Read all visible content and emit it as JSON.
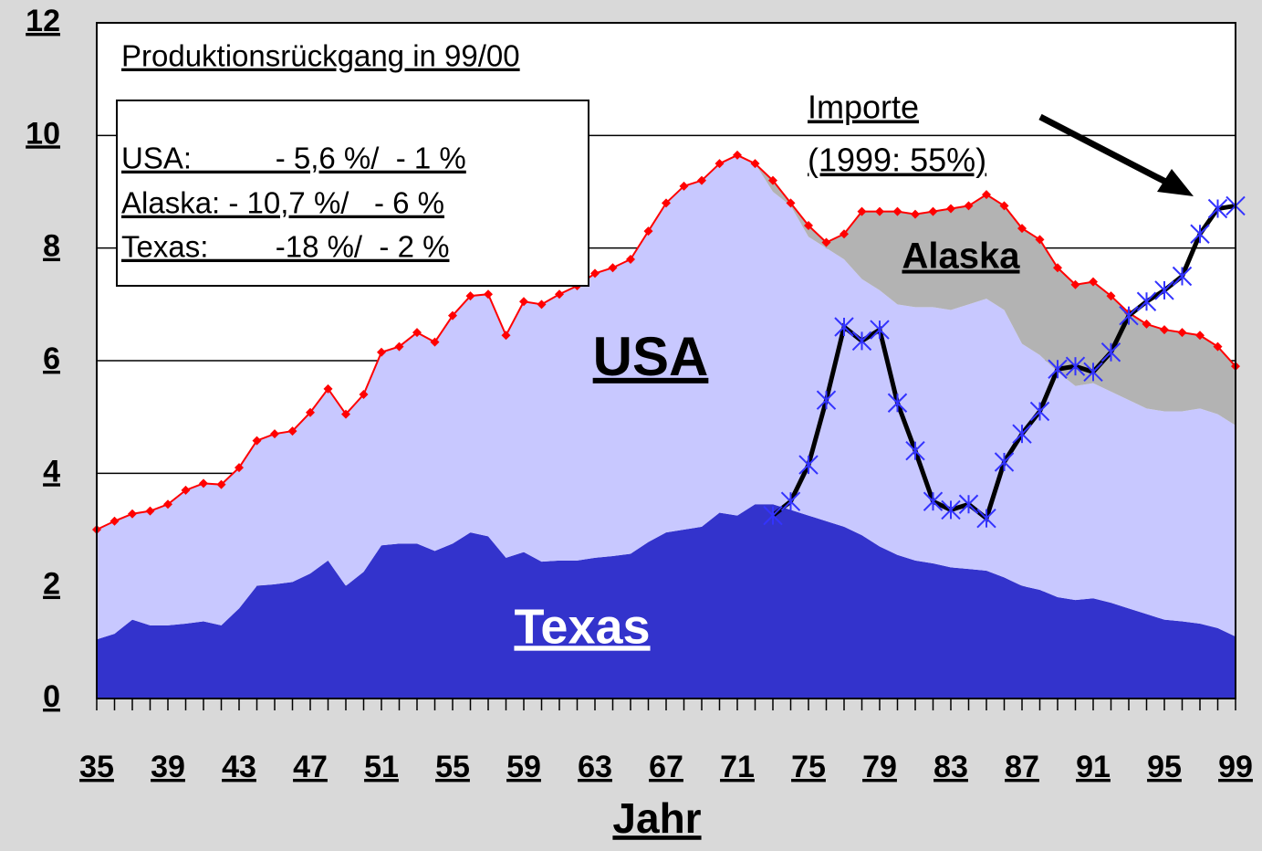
{
  "chart_data": {
    "type": "area",
    "xlabel": "Jahr",
    "annotations": {
      "box_title": "Produktionsrückgang in 99/00",
      "box_lines": [
        "USA:          - 5,6 %/  - 1 %",
        "Alaska: - 10,7 %/   - 6 %",
        "Texas:        -18 %/  - 2 %"
      ],
      "imports_note": "(1999: 55%)"
    },
    "x": [
      1935,
      1936,
      1937,
      1938,
      1939,
      1940,
      1941,
      1942,
      1943,
      1944,
      1945,
      1946,
      1947,
      1948,
      1949,
      1950,
      1951,
      1952,
      1953,
      1954,
      1955,
      1956,
      1957,
      1958,
      1959,
      1960,
      1961,
      1962,
      1963,
      1964,
      1965,
      1966,
      1967,
      1968,
      1969,
      1970,
      1971,
      1972,
      1973,
      1974,
      1975,
      1976,
      1977,
      1978,
      1979,
      1980,
      1981,
      1982,
      1983,
      1984,
      1985,
      1986,
      1987,
      1988,
      1989,
      1990,
      1991,
      1992,
      1993,
      1994,
      1995,
      1996,
      1997,
      1998,
      1999
    ],
    "series": [
      {
        "name": "Texas",
        "type": "stacked-area",
        "color": "#3333cc",
        "label_color": "#ffffff",
        "values": [
          1.05,
          1.15,
          1.4,
          1.3,
          1.3,
          1.33,
          1.37,
          1.3,
          1.6,
          2.0,
          2.03,
          2.07,
          2.22,
          2.45,
          2.0,
          2.25,
          2.72,
          2.75,
          2.75,
          2.62,
          2.75,
          2.95,
          2.88,
          2.5,
          2.6,
          2.43,
          2.45,
          2.45,
          2.5,
          2.53,
          2.57,
          2.78,
          2.95,
          3.0,
          3.05,
          3.3,
          3.25,
          3.45,
          3.45,
          3.35,
          3.25,
          3.15,
          3.05,
          2.9,
          2.7,
          2.55,
          2.45,
          2.4,
          2.33,
          2.3,
          2.27,
          2.15,
          2.0,
          1.93,
          1.8,
          1.75,
          1.78,
          1.7,
          1.6,
          1.5,
          1.4,
          1.37,
          1.33,
          1.25,
          1.1
        ]
      },
      {
        "name": "USA",
        "type": "stacked-area",
        "color": "#c8c8ff",
        "label_color": "#000000",
        "values": [
          1.95,
          2.0,
          1.88,
          2.03,
          2.15,
          2.37,
          2.45,
          2.5,
          2.5,
          2.58,
          2.67,
          2.68,
          2.86,
          3.05,
          3.05,
          3.15,
          3.43,
          3.5,
          3.75,
          3.71,
          4.05,
          4.2,
          4.3,
          3.95,
          4.45,
          4.57,
          4.73,
          4.88,
          5.05,
          5.12,
          5.23,
          5.52,
          5.85,
          6.1,
          6.15,
          6.2,
          6.4,
          6.05,
          5.55,
          5.4,
          4.95,
          4.85,
          4.75,
          4.55,
          4.55,
          4.45,
          4.5,
          4.55,
          4.57,
          4.7,
          4.83,
          4.75,
          4.3,
          4.17,
          4.0,
          3.8,
          3.82,
          3.75,
          3.7,
          3.65,
          3.7,
          3.73,
          3.82,
          3.8,
          3.75
        ]
      },
      {
        "name": "Alaska",
        "type": "stacked-area",
        "color": "#b3b3b3",
        "label_color": "#000000",
        "values": [
          0,
          0,
          0,
          0,
          0,
          0,
          0,
          0,
          0,
          0,
          0,
          0,
          0,
          0,
          0,
          0,
          0,
          0,
          0,
          0,
          0,
          0,
          0,
          0,
          0,
          0,
          0,
          0,
          0,
          0,
          0,
          0,
          0,
          0,
          0,
          0,
          0,
          0,
          0.2,
          0.05,
          0.2,
          0.1,
          0.45,
          1.2,
          1.4,
          1.65,
          1.65,
          1.7,
          1.8,
          1.75,
          1.85,
          1.85,
          2.05,
          2.05,
          1.85,
          1.8,
          1.8,
          1.7,
          1.55,
          1.5,
          1.45,
          1.4,
          1.3,
          1.2,
          1.05
        ]
      },
      {
        "name": "Importe",
        "type": "line",
        "color": "#000000",
        "marker_color": "#3333ff",
        "values": [
          null,
          null,
          null,
          null,
          null,
          null,
          null,
          null,
          null,
          null,
          null,
          null,
          null,
          null,
          null,
          null,
          null,
          null,
          null,
          null,
          null,
          null,
          null,
          null,
          null,
          null,
          null,
          null,
          null,
          null,
          null,
          null,
          null,
          null,
          null,
          null,
          null,
          null,
          3.25,
          3.5,
          4.15,
          5.3,
          6.6,
          6.35,
          6.55,
          5.25,
          4.4,
          3.5,
          3.35,
          3.45,
          3.2,
          4.2,
          4.7,
          5.1,
          5.85,
          5.9,
          5.8,
          6.15,
          6.8,
          7.05,
          7.25,
          7.5,
          8.25,
          8.7,
          8.75
        ]
      }
    ],
    "outline_color": "#ff0000",
    "xlim": [
      1935,
      1999
    ],
    "xticks": [
      {
        "value": 1935,
        "label": "35"
      },
      {
        "value": 1939,
        "label": "39"
      },
      {
        "value": 1943,
        "label": "43"
      },
      {
        "value": 1947,
        "label": "47"
      },
      {
        "value": 1951,
        "label": "51"
      },
      {
        "value": 1955,
        "label": "55"
      },
      {
        "value": 1959,
        "label": "59"
      },
      {
        "value": 1963,
        "label": "63"
      },
      {
        "value": 1967,
        "label": "67"
      },
      {
        "value": 1971,
        "label": "71"
      },
      {
        "value": 1975,
        "label": "75"
      },
      {
        "value": 1979,
        "label": "79"
      },
      {
        "value": 1983,
        "label": "83"
      },
      {
        "value": 1987,
        "label": "87"
      },
      {
        "value": 1991,
        "label": "91"
      },
      {
        "value": 1995,
        "label": "95"
      },
      {
        "value": 1999,
        "label": "99"
      }
    ],
    "ylim": [
      0,
      12
    ],
    "yticks": [
      0,
      2,
      4,
      6,
      8,
      10,
      12
    ],
    "grid": true
  }
}
